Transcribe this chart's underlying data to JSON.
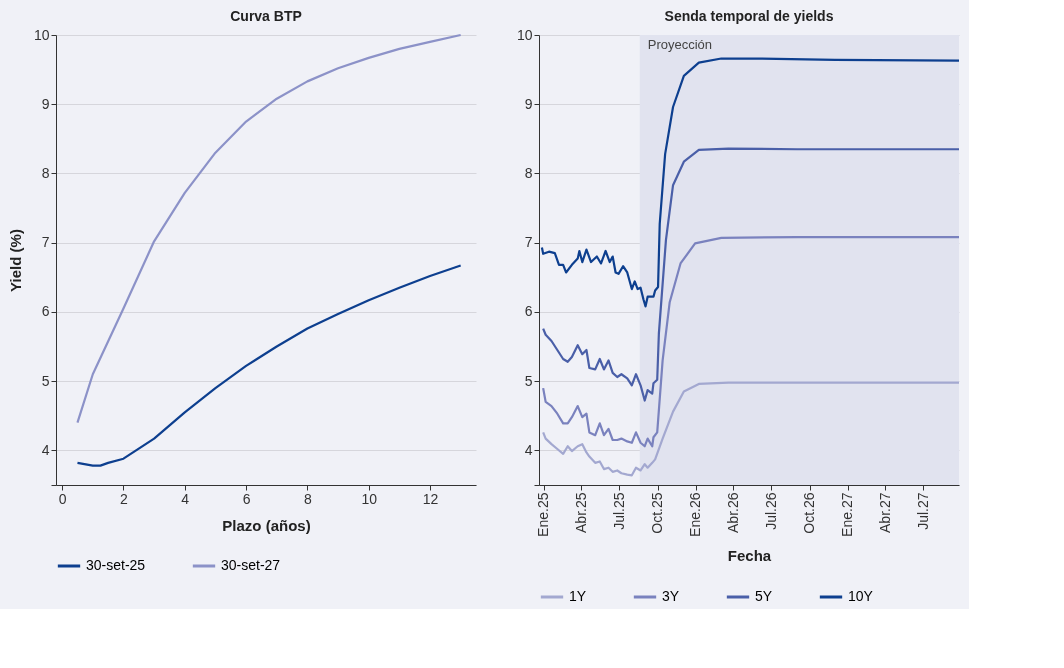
{
  "chart_data": [
    {
      "type": "line",
      "title": "Curva BTP",
      "xlabel": "Plazo (años)",
      "ylabel": "Yield (%)",
      "xlim": [
        -0.2,
        13.5
      ],
      "xticks": [
        0,
        2,
        4,
        6,
        8,
        10,
        12
      ],
      "ylim": [
        3.5,
        10
      ],
      "yticks": [
        {
          "value": 3.5,
          "label": null
        },
        4,
        5,
        6,
        7,
        8,
        9,
        10
      ],
      "grid": "y",
      "legend": "bottom",
      "series": [
        {
          "name": "30-set-25",
          "color": "#0d3f8f",
          "x": [
            0.5,
            1,
            1.25,
            1.5,
            2,
            3,
            4,
            5,
            6,
            7,
            8,
            9,
            10,
            11,
            12,
            13
          ],
          "values": [
            3.82,
            3.78,
            3.78,
            3.82,
            3.88,
            4.17,
            4.55,
            4.9,
            5.22,
            5.5,
            5.76,
            5.97,
            6.17,
            6.35,
            6.52,
            6.67
          ]
        },
        {
          "name": "30-set-27",
          "color": "#8c92c8",
          "x": [
            0.5,
            1,
            2,
            3,
            4,
            5,
            6,
            7,
            8,
            9,
            10,
            11,
            12,
            13
          ],
          "values": [
            4.4,
            5.1,
            6.05,
            7.02,
            7.72,
            8.3,
            8.75,
            9.08,
            9.33,
            9.52,
            9.67,
            9.8,
            9.9,
            10.0
          ]
        }
      ]
    },
    {
      "type": "line",
      "title": "Senda temporal de yields",
      "xlabel": "Fecha",
      "xlim": [
        "2024-12-20",
        "2027-09-25"
      ],
      "xticks": [
        {
          "value": "2025-01-01",
          "label": "Ene.25"
        },
        {
          "value": "2025-04-01",
          "label": "Abr.25"
        },
        {
          "value": "2025-07-01",
          "label": "Jul.25"
        },
        {
          "value": "2025-10-01",
          "label": "Oct.25"
        },
        {
          "value": "2026-01-01",
          "label": "Ene.26"
        },
        {
          "value": "2026-04-01",
          "label": "Abr.26"
        },
        {
          "value": "2026-07-01",
          "label": "Jul.26"
        },
        {
          "value": "2026-10-01",
          "label": "Oct.26"
        },
        {
          "value": "2027-01-01",
          "label": "Ene.27"
        },
        {
          "value": "2027-04-01",
          "label": "Abr.27"
        },
        {
          "value": "2027-07-01",
          "label": "Jul.27"
        }
      ],
      "ylim": [
        3.5,
        10
      ],
      "yticks": [
        {
          "value": 3.5,
          "label": null
        },
        4,
        5,
        6,
        7,
        8,
        9,
        10
      ],
      "grid": "y",
      "legend": "bottom",
      "bands": [
        {
          "axis": "x",
          "from": "2025-08-19",
          "to": "2027-09-25",
          "label": "Proyección",
          "color": "#e1e3ef"
        }
      ],
      "series": [
        {
          "name": "1Y",
          "color": "#a3a8d0",
          "x": [
            "2024-12-30",
            "2025-01-05",
            "2025-01-19",
            "2025-02-02",
            "2025-02-16",
            "2025-02-27",
            "2025-03-09",
            "2025-03-23",
            "2025-04-03",
            "2025-04-13",
            "2025-04-20",
            "2025-05-04",
            "2025-05-15",
            "2025-05-25",
            "2025-06-05",
            "2025-06-15",
            "2025-06-26",
            "2025-07-06",
            "2025-07-20",
            "2025-07-31",
            "2025-08-10",
            "2025-08-21",
            "2025-08-31",
            "2025-09-07",
            "2025-09-18",
            "2025-09-25",
            "2025-10-13",
            "2025-11-07",
            "2025-12-03",
            "2026-01-08",
            "2026-03-20",
            "2026-09-01",
            "2027-09-25"
          ],
          "values": [
            4.26,
            4.17,
            4.09,
            4.02,
            3.95,
            4.06,
            3.99,
            4.06,
            4.09,
            3.97,
            3.91,
            3.82,
            3.84,
            3.73,
            3.75,
            3.69,
            3.71,
            3.67,
            3.65,
            3.64,
            3.75,
            3.71,
            3.8,
            3.75,
            3.82,
            3.87,
            4.17,
            4.56,
            4.85,
            4.96,
            4.98,
            4.98,
            4.98
          ]
        },
        {
          "name": "3Y",
          "color": "#7a82be",
          "x": [
            "2024-12-30",
            "2025-01-05",
            "2025-01-19",
            "2025-02-02",
            "2025-02-16",
            "2025-02-27",
            "2025-03-09",
            "2025-03-23",
            "2025-04-03",
            "2025-04-13",
            "2025-04-20",
            "2025-05-04",
            "2025-05-15",
            "2025-05-25",
            "2025-06-05",
            "2025-06-15",
            "2025-06-26",
            "2025-07-06",
            "2025-07-20",
            "2025-07-31",
            "2025-08-10",
            "2025-08-21",
            "2025-08-31",
            "2025-09-07",
            "2025-09-18",
            "2025-09-21",
            "2025-09-30",
            "2025-10-13",
            "2025-10-30",
            "2025-11-25",
            "2025-12-30",
            "2026-03-03",
            "2026-09-01",
            "2027-09-25"
          ],
          "values": [
            4.9,
            4.7,
            4.64,
            4.53,
            4.39,
            4.39,
            4.48,
            4.64,
            4.48,
            4.53,
            4.26,
            4.22,
            4.39,
            4.22,
            4.31,
            4.15,
            4.15,
            4.17,
            4.13,
            4.11,
            4.26,
            4.11,
            4.06,
            4.17,
            4.06,
            4.19,
            4.26,
            5.3,
            6.14,
            6.7,
            6.99,
            7.07,
            7.08,
            7.08
          ]
        },
        {
          "name": "5Y",
          "color": "#4a5fa8",
          "x": [
            "2024-12-30",
            "2025-01-05",
            "2025-01-19",
            "2025-02-02",
            "2025-02-16",
            "2025-02-27",
            "2025-03-09",
            "2025-03-23",
            "2025-04-03",
            "2025-04-13",
            "2025-04-20",
            "2025-05-04",
            "2025-05-15",
            "2025-05-25",
            "2025-06-05",
            "2025-06-15",
            "2025-06-26",
            "2025-07-06",
            "2025-07-20",
            "2025-07-31",
            "2025-08-10",
            "2025-08-21",
            "2025-08-31",
            "2025-09-07",
            "2025-09-18",
            "2025-09-21",
            "2025-09-30",
            "2025-10-04",
            "2025-10-21",
            "2025-11-07",
            "2025-12-03",
            "2026-01-08",
            "2026-03-20",
            "2026-09-01",
            "2027-09-25"
          ],
          "values": [
            5.76,
            5.67,
            5.58,
            5.45,
            5.32,
            5.28,
            5.35,
            5.52,
            5.39,
            5.45,
            5.19,
            5.17,
            5.32,
            5.17,
            5.3,
            5.12,
            5.06,
            5.1,
            5.04,
            4.94,
            5.1,
            4.94,
            4.72,
            4.87,
            4.82,
            4.97,
            5.02,
            5.69,
            7.04,
            7.83,
            8.17,
            8.34,
            8.36,
            8.35,
            8.35
          ]
        },
        {
          "name": "10Y",
          "color": "#0d3f8f",
          "x": [
            "2024-12-27",
            "2024-12-30",
            "2025-01-13",
            "2025-01-27",
            "2025-02-06",
            "2025-02-16",
            "2025-02-23",
            "2025-03-09",
            "2025-03-23",
            "2025-03-27",
            "2025-04-03",
            "2025-04-13",
            "2025-04-24",
            "2025-05-08",
            "2025-05-18",
            "2025-05-29",
            "2025-06-08",
            "2025-06-15",
            "2025-06-22",
            "2025-06-29",
            "2025-07-10",
            "2025-07-20",
            "2025-07-31",
            "2025-08-07",
            "2025-08-14",
            "2025-08-21",
            "2025-08-28",
            "2025-09-02",
            "2025-09-07",
            "2025-09-21",
            "2025-09-25",
            "2025-10-02",
            "2025-10-06",
            "2025-10-19",
            "2025-11-07",
            "2025-12-03",
            "2026-01-08",
            "2026-03-03",
            "2026-06-01",
            "2026-12-01",
            "2027-09-25"
          ],
          "values": [
            6.93,
            6.84,
            6.87,
            6.85,
            6.68,
            6.68,
            6.57,
            6.68,
            6.77,
            6.88,
            6.72,
            6.9,
            6.72,
            6.8,
            6.7,
            6.88,
            6.72,
            6.8,
            6.57,
            6.55,
            6.66,
            6.57,
            6.33,
            6.44,
            6.33,
            6.35,
            6.18,
            6.08,
            6.22,
            6.22,
            6.31,
            6.36,
            7.27,
            8.28,
            8.96,
            9.41,
            9.6,
            9.66,
            9.66,
            9.64,
            9.63
          ]
        }
      ]
    }
  ]
}
